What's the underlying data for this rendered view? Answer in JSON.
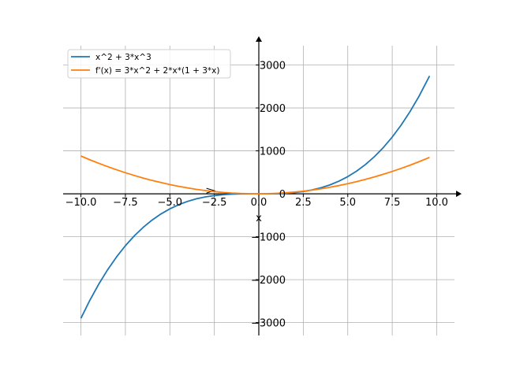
{
  "chart_data": {
    "type": "line",
    "title": "",
    "xlabel": "x",
    "ylabel": "",
    "xlim": [
      -11,
      11
    ],
    "ylim": [
      -3300,
      3450
    ],
    "grid": true,
    "legend_placement": "top-left",
    "x_ticks": [
      -10.0,
      -7.5,
      -5.0,
      -2.5,
      0.0,
      2.5,
      5.0,
      7.5,
      10.0
    ],
    "x_tick_labels": [
      "−10.0",
      "−7.5",
      "−5.0",
      "−2.5",
      "0.0",
      "2.5",
      "5.0",
      "7.5",
      "10.0"
    ],
    "y_ticks": [
      -3000,
      -2000,
      -1000,
      0,
      1000,
      2000,
      3000
    ],
    "y_tick_labels": [
      "−3000",
      "−2000",
      "−1000",
      "0",
      "1000",
      "2000",
      "3000"
    ],
    "series": [
      {
        "name": "x^2 + 3*x^3",
        "color": "#1f77b4",
        "x": [
          -10,
          -9.5,
          -9,
          -8.5,
          -8,
          -7.5,
          -7,
          -6.5,
          -6,
          -5.5,
          -5,
          -4.5,
          -4,
          -3.5,
          -3,
          -2.5,
          -2,
          -1.5,
          -1,
          -0.5,
          0,
          0.5,
          1,
          1.5,
          2,
          2.5,
          3,
          3.5,
          4,
          4.5,
          5,
          5.5,
          6,
          6.5,
          7,
          7.5,
          8,
          8.5,
          9,
          9.6
        ],
        "y": [
          -2900,
          -2482,
          -2106,
          -1770,
          -1472,
          -1209,
          -980,
          -782,
          -612,
          -469,
          -350,
          -253,
          -176,
          -116,
          -72,
          -41,
          -20,
          -8,
          -2,
          0,
          0,
          1,
          4,
          12,
          28,
          53,
          90,
          141,
          208,
          294,
          400,
          529,
          684,
          866,
          1078,
          1322,
          1600,
          1915,
          2268,
          2746
        ]
      },
      {
        "name": "f'(x) = 3*x^2 + 2*x*(1 + 3*x)",
        "color": "#ff7f0e",
        "x": [
          -10,
          -9.5,
          -9,
          -8.5,
          -8,
          -7.5,
          -7,
          -6.5,
          -6,
          -5.5,
          -5,
          -4.5,
          -4,
          -3.5,
          -3,
          -2.5,
          -2,
          -1.5,
          -1,
          -0.5,
          0,
          0.5,
          1,
          1.5,
          2,
          2.5,
          3,
          3.5,
          4,
          4.5,
          5,
          5.5,
          6,
          6.5,
          7,
          7.5,
          8,
          8.5,
          9,
          9.6
        ],
        "y": [
          880,
          793,
          711,
          633,
          560,
          491,
          427,
          367,
          312,
          262,
          215,
          173,
          136,
          103,
          75,
          51,
          32,
          17,
          7,
          2,
          0,
          3,
          11,
          23,
          40,
          61,
          87,
          117,
          152,
          191,
          235,
          283,
          336,
          393,
          455,
          521,
          592,
          667,
          747,
          849
        ]
      }
    ]
  }
}
